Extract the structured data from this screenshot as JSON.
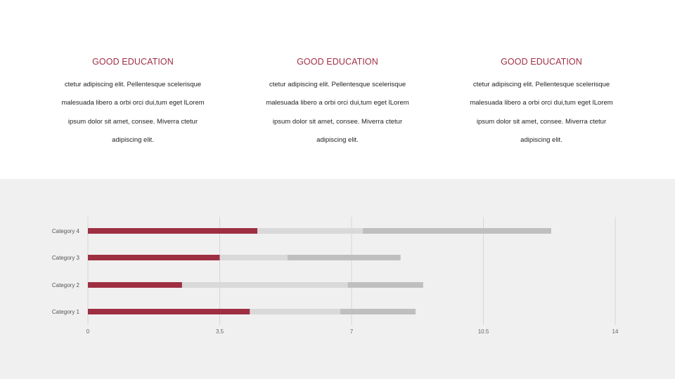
{
  "columns": [
    {
      "title": "GOOD EDUCATION",
      "body": "ctetur adipiscing elit. Pellentesque scelerisque malesuada libero a orbi orci dui,tum eget lLorem ipsum dolor sit amet, consee. Miverra ctetur adipiscing elit."
    },
    {
      "title": "GOOD EDUCATION",
      "body": "ctetur adipiscing elit. Pellentesque scelerisque malesuada libero a orbi orci dui,tum eget lLorem ipsum dolor sit amet, consee. Miverra ctetur adipiscing elit."
    },
    {
      "title": "GOOD EDUCATION",
      "body": "ctetur adipiscing elit. Pellentesque scelerisque malesuada libero a orbi orci dui,tum eget lLorem ipsum dolor sit amet, consee. Miverra ctetur adipiscing elit."
    }
  ],
  "colors": {
    "accent": "#9e2f42",
    "series2": "#d9d9d9",
    "series3": "#bfbfbf",
    "band": "#f1f0f0"
  },
  "chart_data": {
    "type": "bar",
    "orientation": "horizontal",
    "stacked": true,
    "categories": [
      "Category 1",
      "Category 2",
      "Category 3",
      "Category 4"
    ],
    "series": [
      {
        "values": [
          4.3,
          2.5,
          3.5,
          4.5
        ]
      },
      {
        "values": [
          2.4,
          4.4,
          1.8,
          2.8
        ]
      },
      {
        "values": [
          2.0,
          2.0,
          3.0,
          5.0
        ]
      }
    ],
    "xlim": [
      0,
      14
    ],
    "xticks": [
      "0",
      "3.5",
      "7",
      "10.5",
      "14"
    ],
    "grid": true,
    "legend": "none"
  }
}
